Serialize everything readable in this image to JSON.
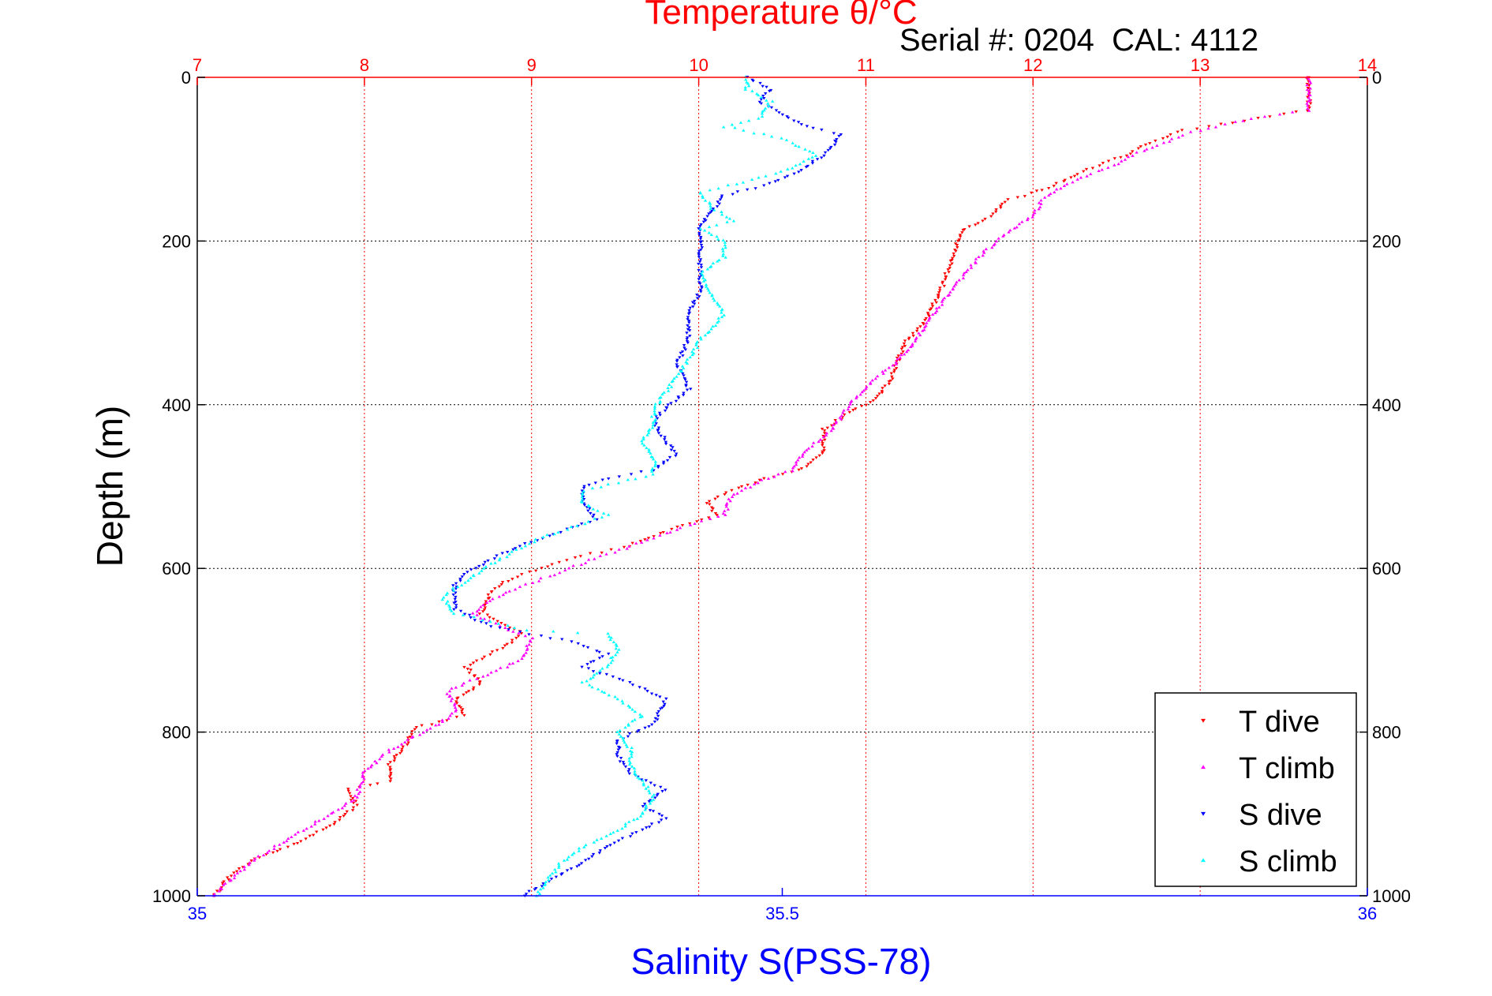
{
  "chart_data": {
    "type": "scatter",
    "title": "Temperature θ/°C",
    "annotation": "Serial #: 0204  CAL: 4112",
    "ylabel": "Depth (m)",
    "xlabel_bottom": "Salinity S(PSS-78)",
    "y_axis": {
      "range": [
        0,
        1000
      ],
      "reversed": true,
      "ticks": [
        0,
        200,
        400,
        600,
        800,
        1000
      ],
      "tick_labels": [
        "0",
        "200",
        "400",
        "600",
        "800",
        "1000"
      ]
    },
    "x_top": {
      "range": [
        7,
        14
      ],
      "ticks": [
        7,
        8,
        9,
        10,
        11,
        12,
        13,
        14
      ],
      "tick_labels": [
        "7",
        "8",
        "9",
        "10",
        "11",
        "12",
        "13",
        "14"
      ],
      "color": "#ff0000",
      "grid": true
    },
    "x_bottom": {
      "range": [
        35,
        36
      ],
      "ticks": [
        35,
        35.5,
        36
      ],
      "tick_labels": [
        "35",
        "35.5",
        "36"
      ],
      "color": "#0000ff"
    },
    "grid": true,
    "legend": {
      "placement": "bottom-right"
    },
    "series": [
      {
        "name": "T dive",
        "axis": "top",
        "color": "#ff0000",
        "marker": "triangle-down",
        "points": [
          [
            13.65,
            0
          ],
          [
            13.65,
            20
          ],
          [
            13.65,
            40
          ],
          [
            13.2,
            55
          ],
          [
            12.9,
            65
          ],
          [
            12.7,
            80
          ],
          [
            12.55,
            95
          ],
          [
            12.3,
            115
          ],
          [
            12.15,
            130
          ],
          [
            12.0,
            142
          ],
          [
            11.85,
            150
          ],
          [
            11.75,
            170
          ],
          [
            11.6,
            185
          ],
          [
            11.55,
            200
          ],
          [
            11.5,
            230
          ],
          [
            11.45,
            260
          ],
          [
            11.4,
            280
          ],
          [
            11.35,
            300
          ],
          [
            11.25,
            320
          ],
          [
            11.2,
            340
          ],
          [
            11.15,
            370
          ],
          [
            11.05,
            395
          ],
          [
            10.9,
            410
          ],
          [
            10.75,
            430
          ],
          [
            10.75,
            460
          ],
          [
            10.6,
            480
          ],
          [
            10.4,
            490
          ],
          [
            10.2,
            505
          ],
          [
            10.05,
            520
          ],
          [
            10.1,
            535
          ],
          [
            9.8,
            555
          ],
          [
            9.55,
            575
          ],
          [
            9.3,
            585
          ],
          [
            9.05,
            600
          ],
          [
            8.85,
            615
          ],
          [
            8.75,
            630
          ],
          [
            8.7,
            655
          ],
          [
            8.85,
            670
          ],
          [
            8.95,
            680
          ],
          [
            8.8,
            700
          ],
          [
            8.6,
            720
          ],
          [
            8.7,
            740
          ],
          [
            8.55,
            760
          ],
          [
            8.6,
            780
          ],
          [
            8.3,
            795
          ],
          [
            8.25,
            815
          ],
          [
            8.15,
            840
          ],
          [
            8.15,
            860
          ],
          [
            7.9,
            870
          ],
          [
            7.95,
            890
          ],
          [
            7.8,
            915
          ],
          [
            7.6,
            935
          ],
          [
            7.35,
            955
          ],
          [
            7.2,
            975
          ],
          [
            7.1,
            1000
          ]
        ]
      },
      {
        "name": "T climb",
        "axis": "top",
        "color": "#ff00ff",
        "marker": "triangle-up",
        "points": [
          [
            13.65,
            0
          ],
          [
            13.65,
            20
          ],
          [
            13.65,
            40
          ],
          [
            13.3,
            50
          ],
          [
            12.9,
            70
          ],
          [
            12.6,
            95
          ],
          [
            12.45,
            110
          ],
          [
            12.2,
            130
          ],
          [
            12.05,
            150
          ],
          [
            12.0,
            170
          ],
          [
            11.85,
            190
          ],
          [
            11.7,
            215
          ],
          [
            11.55,
            250
          ],
          [
            11.4,
            290
          ],
          [
            11.3,
            320
          ],
          [
            11.2,
            345
          ],
          [
            11.05,
            370
          ],
          [
            10.9,
            400
          ],
          [
            10.8,
            430
          ],
          [
            10.65,
            455
          ],
          [
            10.55,
            480
          ],
          [
            10.35,
            495
          ],
          [
            10.2,
            510
          ],
          [
            10.15,
            535
          ],
          [
            9.9,
            550
          ],
          [
            9.7,
            565
          ],
          [
            9.35,
            590
          ],
          [
            9.1,
            610
          ],
          [
            8.9,
            625
          ],
          [
            8.75,
            640
          ],
          [
            8.65,
            655
          ],
          [
            8.8,
            670
          ],
          [
            9.0,
            685
          ],
          [
            8.95,
            710
          ],
          [
            8.8,
            725
          ],
          [
            8.6,
            740
          ],
          [
            8.5,
            750
          ],
          [
            8.55,
            775
          ],
          [
            8.4,
            795
          ],
          [
            8.25,
            810
          ],
          [
            8.1,
            830
          ],
          [
            8.0,
            850
          ],
          [
            7.95,
            880
          ],
          [
            7.8,
            900
          ],
          [
            7.55,
            930
          ],
          [
            7.35,
            955
          ],
          [
            7.2,
            980
          ],
          [
            7.1,
            1000
          ]
        ]
      },
      {
        "name": "S dive",
        "axis": "bottom",
        "color": "#0000ff",
        "marker": "triangle-down",
        "points": [
          [
            35.47,
            0
          ],
          [
            35.49,
            15
          ],
          [
            35.48,
            30
          ],
          [
            35.5,
            45
          ],
          [
            35.52,
            60
          ],
          [
            35.55,
            70
          ],
          [
            35.54,
            90
          ],
          [
            35.52,
            110
          ],
          [
            35.49,
            130
          ],
          [
            35.45,
            145
          ],
          [
            35.44,
            165
          ],
          [
            35.43,
            180
          ],
          [
            35.43,
            200
          ],
          [
            35.43,
            230
          ],
          [
            35.43,
            260
          ],
          [
            35.42,
            290
          ],
          [
            35.42,
            320
          ],
          [
            35.41,
            350
          ],
          [
            35.42,
            380
          ],
          [
            35.4,
            405
          ],
          [
            35.39,
            420
          ],
          [
            35.4,
            445
          ],
          [
            35.41,
            460
          ],
          [
            35.39,
            480
          ],
          [
            35.35,
            490
          ],
          [
            35.33,
            500
          ],
          [
            35.33,
            520
          ],
          [
            35.34,
            540
          ],
          [
            35.3,
            560
          ],
          [
            35.28,
            570
          ],
          [
            35.25,
            590
          ],
          [
            35.23,
            605
          ],
          [
            35.22,
            620
          ],
          [
            35.22,
            650
          ],
          [
            35.25,
            670
          ],
          [
            35.32,
            690
          ],
          [
            35.35,
            705
          ],
          [
            35.33,
            720
          ],
          [
            35.37,
            740
          ],
          [
            35.4,
            760
          ],
          [
            35.39,
            790
          ],
          [
            35.36,
            810
          ],
          [
            35.36,
            830
          ],
          [
            35.37,
            850
          ],
          [
            35.4,
            870
          ],
          [
            35.38,
            890
          ],
          [
            35.4,
            905
          ],
          [
            35.38,
            920
          ],
          [
            35.35,
            940
          ],
          [
            35.33,
            960
          ],
          [
            35.31,
            975
          ],
          [
            35.29,
            990
          ],
          [
            35.28,
            1000
          ]
        ]
      },
      {
        "name": "S climb",
        "axis": "bottom",
        "color": "#00ffff",
        "marker": "triangle-up",
        "points": [
          [
            35.47,
            0
          ],
          [
            35.47,
            15
          ],
          [
            35.49,
            30
          ],
          [
            35.48,
            50
          ],
          [
            35.45,
            60
          ],
          [
            35.5,
            75
          ],
          [
            35.53,
            95
          ],
          [
            35.5,
            115
          ],
          [
            35.46,
            130
          ],
          [
            35.43,
            140
          ],
          [
            35.44,
            160
          ],
          [
            35.46,
            175
          ],
          [
            35.43,
            185
          ],
          [
            35.45,
            200
          ],
          [
            35.45,
            220
          ],
          [
            35.43,
            240
          ],
          [
            35.44,
            265
          ],
          [
            35.45,
            290
          ],
          [
            35.43,
            320
          ],
          [
            35.42,
            345
          ],
          [
            35.41,
            365
          ],
          [
            35.4,
            385
          ],
          [
            35.39,
            405
          ],
          [
            35.39,
            425
          ],
          [
            35.38,
            445
          ],
          [
            35.39,
            465
          ],
          [
            35.39,
            485
          ],
          [
            35.36,
            495
          ],
          [
            35.33,
            505
          ],
          [
            35.33,
            520
          ],
          [
            35.35,
            535
          ],
          [
            35.32,
            550
          ],
          [
            35.29,
            565
          ],
          [
            35.27,
            580
          ],
          [
            35.25,
            595
          ],
          [
            35.23,
            615
          ],
          [
            35.21,
            635
          ],
          [
            35.22,
            655
          ],
          [
            35.28,
            675
          ],
          [
            35.35,
            680
          ],
          [
            35.36,
            700
          ],
          [
            35.35,
            720
          ],
          [
            35.33,
            740
          ],
          [
            35.36,
            760
          ],
          [
            35.38,
            780
          ],
          [
            35.36,
            800
          ],
          [
            35.37,
            820
          ],
          [
            35.37,
            840
          ],
          [
            35.38,
            860
          ],
          [
            35.39,
            880
          ],
          [
            35.38,
            900
          ],
          [
            35.36,
            920
          ],
          [
            35.33,
            940
          ],
          [
            35.31,
            960
          ],
          [
            35.3,
            980
          ],
          [
            35.29,
            1000
          ]
        ]
      }
    ]
  }
}
